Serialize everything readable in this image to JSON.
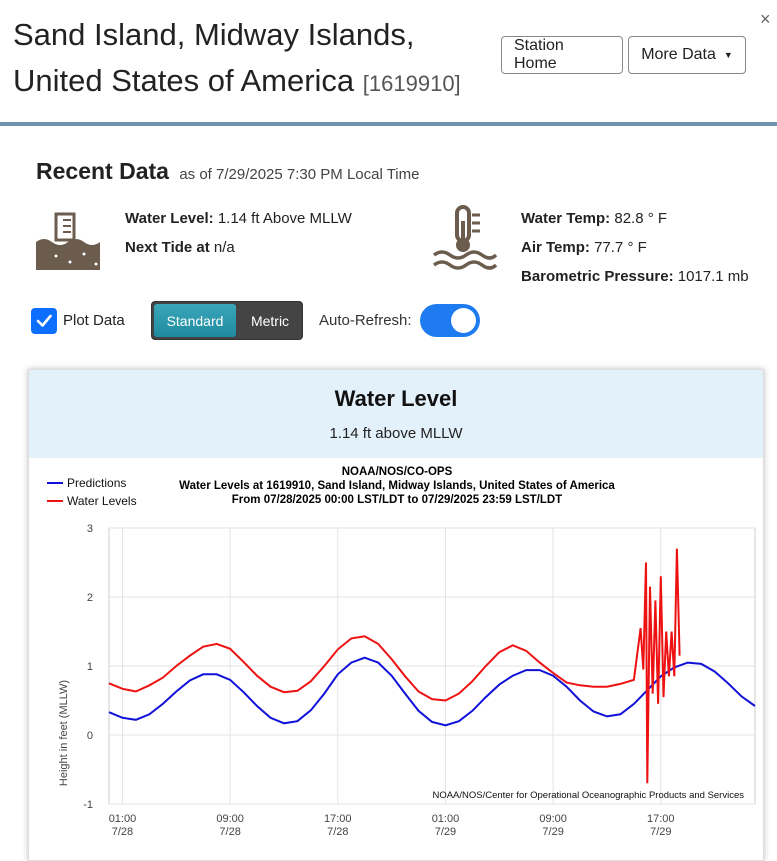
{
  "header": {
    "title_line1": "Sand Island, Midway Islands,",
    "title_line2": "United States of America",
    "station_id": "[1619910]",
    "station_home_label": "Station Home",
    "more_data_label": "More Data",
    "close_glyph": "×"
  },
  "recent": {
    "title": "Recent Data",
    "as_of": "as of 7/29/2025 7:30 PM Local Time",
    "water_level_label": "Water Level:",
    "water_level_value": "1.14 ft Above MLLW",
    "next_tide_label": "Next Tide at",
    "next_tide_value": "n/a",
    "water_temp_label": "Water Temp:",
    "water_temp_value": "82.8 ° F",
    "air_temp_label": "Air Temp:",
    "air_temp_value": "77.7 ° F",
    "pressure_label": "Barometric Pressure:",
    "pressure_value": "1017.1 mb"
  },
  "controls": {
    "plot_data_label": "Plot Data",
    "plot_data_checked": true,
    "unit_standard": "Standard",
    "unit_metric": "Metric",
    "selected_unit": "Standard",
    "auto_refresh_label": "Auto-Refresh:",
    "auto_refresh_on": true
  },
  "card": {
    "title": "Water Level",
    "subtitle": "1.14 ft above MLLW"
  },
  "colors": {
    "accent_blue": "#0d6efd",
    "header_rule": "#7093b2",
    "card_header_bg": "#e3f1fb",
    "predictions": "#1010d8",
    "water_levels": "#ee1111"
  },
  "icons": {
    "water_level": "water-level-gauge-icon",
    "temperature": "thermometer-water-icon",
    "checkbox": "checkmark-icon",
    "dropdown": "caret-down-icon",
    "close": "close-icon"
  },
  "chart_data": {
    "type": "line",
    "title": "NOAA/NOS/CO-OPS",
    "subtitle_lines": [
      "Water Levels at 1619910, Sand Island, Midway Islands, United States of America",
      "From 07/28/2025 00:00 LST/LDT to 07/29/2025 23:59 LST/LDT"
    ],
    "ylabel": "Height in feet (MLLW)",
    "xlabel": "",
    "credit": "NOAA/NOS/Center for Operational Oceanographic Products and Services",
    "ylim": [
      -1,
      3
    ],
    "yticks": [
      -1,
      0,
      1,
      2,
      3
    ],
    "xlim": [
      0,
      48
    ],
    "xticks": [
      {
        "x": 1,
        "time": "01:00",
        "date": "7/28"
      },
      {
        "x": 9,
        "time": "09:00",
        "date": "7/28"
      },
      {
        "x": 17,
        "time": "17:00",
        "date": "7/28"
      },
      {
        "x": 25,
        "time": "01:00",
        "date": "7/29"
      },
      {
        "x": 33,
        "time": "09:00",
        "date": "7/29"
      },
      {
        "x": 41,
        "time": "17:00",
        "date": "7/29"
      }
    ],
    "grid": true,
    "legend": "top-left",
    "series": [
      {
        "name": "Predictions",
        "color": "#1010d8",
        "points": [
          [
            0,
            0.33
          ],
          [
            1,
            0.25
          ],
          [
            2,
            0.22
          ],
          [
            3,
            0.3
          ],
          [
            4,
            0.45
          ],
          [
            5,
            0.63
          ],
          [
            6,
            0.79
          ],
          [
            7,
            0.88
          ],
          [
            8,
            0.88
          ],
          [
            9,
            0.8
          ],
          [
            10,
            0.62
          ],
          [
            11,
            0.42
          ],
          [
            12,
            0.25
          ],
          [
            13,
            0.17
          ],
          [
            14,
            0.2
          ],
          [
            15,
            0.36
          ],
          [
            16,
            0.6
          ],
          [
            17,
            0.88
          ],
          [
            18,
            1.05
          ],
          [
            19,
            1.12
          ],
          [
            20,
            1.05
          ],
          [
            21,
            0.86
          ],
          [
            22,
            0.6
          ],
          [
            23,
            0.35
          ],
          [
            24,
            0.19
          ],
          [
            25,
            0.14
          ],
          [
            26,
            0.2
          ],
          [
            27,
            0.35
          ],
          [
            28,
            0.55
          ],
          [
            29,
            0.73
          ],
          [
            30,
            0.86
          ],
          [
            31,
            0.94
          ],
          [
            32,
            0.94
          ],
          [
            33,
            0.86
          ],
          [
            34,
            0.7
          ],
          [
            35,
            0.5
          ],
          [
            36,
            0.34
          ],
          [
            37,
            0.27
          ],
          [
            38,
            0.3
          ],
          [
            39,
            0.45
          ],
          [
            40,
            0.65
          ],
          [
            41,
            0.85
          ],
          [
            42,
            0.98
          ],
          [
            43,
            1.05
          ],
          [
            44,
            1.03
          ],
          [
            45,
            0.92
          ],
          [
            46,
            0.75
          ],
          [
            47,
            0.56
          ],
          [
            48,
            0.42
          ]
        ]
      },
      {
        "name": "Water Levels",
        "color": "#ee1111",
        "points": [
          [
            0,
            0.75
          ],
          [
            1,
            0.67
          ],
          [
            2,
            0.63
          ],
          [
            3,
            0.72
          ],
          [
            4,
            0.83
          ],
          [
            5,
            1.0
          ],
          [
            6,
            1.15
          ],
          [
            7,
            1.28
          ],
          [
            8,
            1.32
          ],
          [
            9,
            1.25
          ],
          [
            10,
            1.06
          ],
          [
            11,
            0.86
          ],
          [
            12,
            0.7
          ],
          [
            13,
            0.62
          ],
          [
            14,
            0.64
          ],
          [
            15,
            0.78
          ],
          [
            16,
            1.0
          ],
          [
            17,
            1.24
          ],
          [
            18,
            1.4
          ],
          [
            19,
            1.43
          ],
          [
            20,
            1.32
          ],
          [
            21,
            1.1
          ],
          [
            22,
            0.85
          ],
          [
            23,
            0.63
          ],
          [
            24,
            0.52
          ],
          [
            25,
            0.5
          ],
          [
            26,
            0.6
          ],
          [
            27,
            0.78
          ],
          [
            28,
            1.0
          ],
          [
            29,
            1.2
          ],
          [
            30,
            1.3
          ],
          [
            31,
            1.22
          ],
          [
            32,
            1.05
          ],
          [
            33,
            0.9
          ],
          [
            34,
            0.76
          ],
          [
            35,
            0.72
          ],
          [
            36,
            0.7
          ],
          [
            37,
            0.7
          ],
          [
            38,
            0.74
          ],
          [
            39,
            0.8
          ],
          [
            39.5,
            1.55
          ],
          [
            39.7,
            0.95
          ],
          [
            39.9,
            2.5
          ],
          [
            40.0,
            -0.7
          ],
          [
            40.2,
            2.15
          ],
          [
            40.4,
            0.6
          ],
          [
            40.6,
            1.95
          ],
          [
            40.8,
            0.45
          ],
          [
            41.0,
            2.3
          ],
          [
            41.2,
            0.55
          ],
          [
            41.4,
            1.5
          ],
          [
            41.6,
            0.85
          ],
          [
            41.8,
            1.5
          ],
          [
            42.0,
            0.85
          ],
          [
            42.2,
            2.7
          ],
          [
            42.4,
            1.15
          ]
        ]
      }
    ]
  }
}
